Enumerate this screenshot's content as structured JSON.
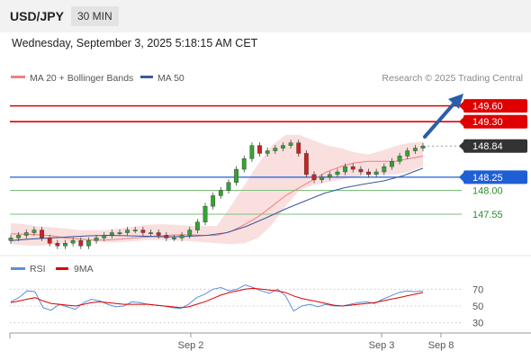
{
  "header": {
    "symbol": "USD/JPY",
    "timeframe": "30 MIN"
  },
  "datetime": "Wednesday, September 3, 2025 5:18:15 AM CET",
  "legend": {
    "bb_label": "MA 20 + Bollinger Bands",
    "ma50_label": "MA 50",
    "credit": "Research © 2025 Trading Central",
    "rsi_label": "RSI",
    "rsi_ma_label": "9MA"
  },
  "colors": {
    "bb_band": "#f5b8b8",
    "ma20": "#f08080",
    "ma50": "#3a5a9c",
    "resistance": "#e00000",
    "support": "#1f5fd6",
    "target": "#7cc07c",
    "current": "#333333",
    "arrow": "#2b5da8",
    "rsi": "#5b8fd9",
    "rsi_ma": "#e00000",
    "candle_up": "#33a333",
    "candle_down": "#cc2222"
  },
  "chart_data": [
    {
      "type": "line",
      "title": "USD/JPY 30 MIN",
      "x_tick_labels": [
        "Sep 2",
        "Sep 3",
        "Sep 8"
      ],
      "ylim": [
        146.8,
        149.9
      ],
      "levels": [
        {
          "label": "149.60",
          "value": 149.6,
          "kind": "resistance"
        },
        {
          "label": "149.30",
          "value": 149.3,
          "kind": "resistance"
        },
        {
          "label": "148.84",
          "value": 148.84,
          "kind": "current"
        },
        {
          "label": "148.25",
          "value": 148.25,
          "kind": "pivot"
        },
        {
          "label": "148.00",
          "value": 148.0,
          "kind": "target"
        },
        {
          "label": "147.55",
          "value": 147.55,
          "kind": "target"
        }
      ],
      "close_series": [
        147.1,
        147.15,
        147.2,
        147.25,
        147.1,
        147.0,
        146.95,
        147.0,
        147.05,
        146.95,
        147.05,
        147.1,
        147.15,
        147.2,
        147.2,
        147.25,
        147.25,
        147.2,
        147.2,
        147.15,
        147.1,
        147.1,
        147.15,
        147.25,
        147.4,
        147.7,
        147.9,
        148.0,
        148.15,
        148.4,
        148.6,
        148.85,
        148.7,
        148.75,
        148.8,
        148.85,
        148.9,
        148.7,
        148.3,
        148.2,
        148.25,
        148.3,
        148.35,
        148.45,
        148.4,
        148.35,
        148.3,
        148.35,
        148.45,
        148.55,
        148.65,
        148.75,
        148.8,
        148.84
      ],
      "ma20_series": [
        147.18,
        147.17,
        147.16,
        147.14,
        147.1,
        147.08,
        147.06,
        147.06,
        147.08,
        147.1,
        147.12,
        147.14,
        147.16,
        147.16,
        147.15,
        147.15,
        147.22,
        147.35,
        147.5,
        147.7,
        147.9,
        148.05,
        148.2,
        148.35,
        148.45,
        148.52,
        148.55,
        148.55,
        148.55,
        148.6,
        148.65
      ],
      "ma50_series": [
        147.05,
        147.08,
        147.1,
        147.12,
        147.14,
        147.15,
        147.14,
        147.13,
        147.12,
        147.13,
        147.15,
        147.2,
        147.32,
        147.48,
        147.65,
        147.8,
        147.95,
        148.05,
        148.12,
        148.18,
        148.28,
        148.42
      ],
      "bb_upper_series": [
        147.38,
        147.36,
        147.32,
        147.3,
        147.28,
        147.25,
        147.25,
        147.25,
        147.28,
        147.32,
        147.35,
        147.36,
        147.35,
        147.33,
        147.32,
        147.33,
        147.7,
        148.1,
        148.5,
        148.85,
        149.05,
        149.05,
        148.95,
        148.85,
        148.8,
        148.72,
        148.68,
        148.75,
        148.84,
        148.9,
        148.92
      ],
      "bb_lower_series": [
        146.98,
        146.96,
        146.95,
        146.97,
        147.0,
        147.02,
        147.03,
        147.02,
        147.02,
        147.04,
        147.06,
        147.06,
        147.05,
        147.04,
        147.02,
        147.0,
        146.98,
        147.0,
        147.1,
        147.35,
        147.7,
        148.0,
        148.1,
        148.15,
        148.2,
        148.25,
        148.3,
        148.3,
        148.3,
        148.35,
        148.45
      ]
    },
    {
      "type": "line",
      "title": "RSI",
      "ylim": [
        20,
        80
      ],
      "y_tick_labels": [
        "70",
        "50",
        "30"
      ],
      "y_ticks": [
        70,
        50,
        30
      ],
      "series": [
        {
          "name": "RSI",
          "values": [
            55,
            60,
            68,
            67,
            48,
            45,
            52,
            49,
            46,
            54,
            58,
            56,
            52,
            49,
            50,
            55,
            54,
            52,
            51,
            50,
            48,
            47,
            52,
            60,
            64,
            70,
            72,
            68,
            70,
            75,
            72,
            68,
            65,
            70,
            62,
            44,
            50,
            52,
            49,
            52,
            50,
            50,
            52,
            54,
            55,
            53,
            58,
            62,
            66,
            68,
            67,
            68
          ]
        },
        {
          "name": "9MA",
          "values": [
            54,
            56,
            58,
            60,
            56,
            53,
            52,
            51,
            50,
            52,
            54,
            55,
            54,
            53,
            52,
            52,
            52,
            52,
            51,
            50,
            49,
            48,
            49,
            52,
            55,
            59,
            63,
            66,
            68,
            70,
            71,
            70,
            69,
            68,
            66,
            62,
            59,
            57,
            55,
            53,
            51,
            50,
            51,
            52,
            53,
            54,
            56,
            58,
            60,
            62,
            64,
            66
          ]
        }
      ]
    }
  ]
}
